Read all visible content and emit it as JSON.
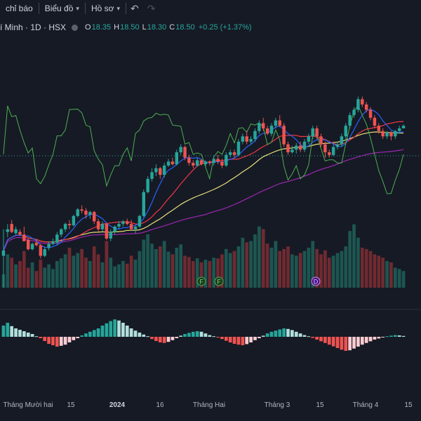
{
  "toolbar": {
    "indicators_label": "chỉ báo",
    "chart_label": "Biểu đồ",
    "profile_label": "Hồ sơ",
    "undo_icon": "undo-icon",
    "redo_icon": "redo-icon"
  },
  "legend": {
    "symbol_text": "í Minh · 1D · HSX",
    "open_key": "O",
    "open": "18.35",
    "high_key": "H",
    "high": "18.50",
    "low_key": "L",
    "low": "18.30",
    "close_key": "C",
    "close": "18.50",
    "change": "+0.25 (+1.37%)"
  },
  "colors": {
    "background": "#161a25",
    "up": "#26a69a",
    "down": "#ef5350",
    "ma_fast": "#2962ff",
    "ma_mid": "#f23645",
    "ma_slow": "#e8e07a",
    "ma_long": "#9c27b0",
    "rsi_like": "#4caf50"
  },
  "chart_data": {
    "type": "candlestick",
    "timeframe": "1D",
    "exchange": "HSX",
    "x_ticks": [
      "Tháng Mười hai",
      "15",
      "2024",
      "16",
      "Tháng Hai",
      "Tháng 3",
      "15",
      "Tháng 4",
      "15"
    ],
    "last_bar": {
      "open": 18.35,
      "high": 18.5,
      "low": 18.3,
      "close": 18.5,
      "change": 0.25,
      "change_pct": 1.37
    },
    "events": [
      {
        "label": "F",
        "after_tick": "Tháng Hai"
      },
      {
        "label": "F",
        "after_tick": "Tháng Hai"
      },
      {
        "label": "D",
        "after_tick": "Tháng 3"
      }
    ],
    "candles": [
      [
        0.52,
        0.56,
        0.72,
        0.28
      ],
      [
        0.7,
        0.72,
        0.76,
        0.66
      ],
      [
        0.76,
        0.7,
        0.79,
        0.69
      ],
      [
        0.69,
        0.72,
        0.74,
        0.68
      ],
      [
        0.7,
        0.68,
        0.72,
        0.67
      ],
      [
        0.68,
        0.63,
        0.74,
        0.63
      ],
      [
        0.64,
        0.57,
        0.65,
        0.56
      ],
      [
        0.57,
        0.61,
        0.62,
        0.56
      ],
      [
        0.62,
        0.6,
        0.64,
        0.59
      ],
      [
        0.6,
        0.52,
        0.61,
        0.5
      ],
      [
        0.52,
        0.57,
        0.59,
        0.51
      ],
      [
        0.58,
        0.61,
        0.63,
        0.56
      ],
      [
        0.61,
        0.63,
        0.65,
        0.6
      ],
      [
        0.62,
        0.68,
        0.7,
        0.6
      ],
      [
        0.68,
        0.72,
        0.73,
        0.66
      ],
      [
        0.72,
        0.76,
        0.77,
        0.7
      ],
      [
        0.76,
        0.75,
        0.79,
        0.72
      ],
      [
        0.75,
        0.82,
        0.83,
        0.74
      ],
      [
        0.82,
        0.87,
        0.88,
        0.81
      ],
      [
        0.87,
        0.86,
        0.9,
        0.84
      ],
      [
        0.86,
        0.83,
        0.88,
        0.8
      ],
      [
        0.83,
        0.85,
        0.86,
        0.8
      ],
      [
        0.85,
        0.78,
        0.86,
        0.76
      ],
      [
        0.78,
        0.72,
        0.8,
        0.7
      ],
      [
        0.72,
        0.76,
        0.78,
        0.7
      ],
      [
        0.76,
        0.65,
        0.77,
        0.64
      ],
      [
        0.65,
        0.7,
        0.72,
        0.63
      ],
      [
        0.7,
        0.74,
        0.75,
        0.68
      ],
      [
        0.74,
        0.76,
        0.78,
        0.72
      ],
      [
        0.76,
        0.78,
        0.79,
        0.74
      ],
      [
        0.78,
        0.76,
        0.8,
        0.75
      ],
      [
        0.76,
        0.72,
        0.79,
        0.71
      ],
      [
        0.72,
        0.74,
        0.75,
        0.69
      ],
      [
        0.74,
        0.82,
        0.83,
        0.73
      ],
      [
        0.82,
        1.0,
        1.02,
        0.81
      ],
      [
        1.0,
        1.1,
        1.12,
        0.99
      ],
      [
        1.1,
        1.15,
        1.18,
        1.08
      ],
      [
        1.15,
        1.18,
        1.21,
        1.12
      ],
      [
        1.18,
        1.13,
        1.19,
        1.1
      ],
      [
        1.13,
        1.2,
        1.22,
        1.11
      ],
      [
        1.2,
        1.23,
        1.25,
        1.19
      ],
      [
        1.23,
        1.21,
        1.26,
        1.2
      ],
      [
        1.21,
        1.3,
        1.32,
        1.2
      ],
      [
        1.3,
        1.34,
        1.36,
        1.28
      ],
      [
        1.34,
        1.26,
        1.35,
        1.24
      ],
      [
        1.26,
        1.22,
        1.28,
        1.2
      ],
      [
        1.22,
        1.2,
        1.24,
        1.18
      ],
      [
        1.2,
        1.24,
        1.26,
        1.19
      ],
      [
        1.24,
        1.21,
        1.25,
        1.2
      ],
      [
        1.21,
        1.23,
        1.24,
        1.19
      ],
      [
        1.23,
        1.22,
        1.24,
        1.2
      ],
      [
        1.22,
        1.25,
        1.27,
        1.2
      ],
      [
        1.25,
        1.23,
        1.28,
        1.21
      ],
      [
        1.23,
        1.2,
        1.25,
        1.18
      ],
      [
        1.2,
        1.28,
        1.3,
        1.19
      ],
      [
        1.28,
        1.3,
        1.32,
        1.26
      ],
      [
        1.3,
        1.28,
        1.32,
        1.26
      ],
      [
        1.28,
        1.38,
        1.4,
        1.27
      ],
      [
        1.38,
        1.42,
        1.44,
        1.36
      ],
      [
        1.42,
        1.38,
        1.46,
        1.36
      ],
      [
        1.38,
        1.4,
        1.42,
        1.36
      ],
      [
        1.4,
        1.46,
        1.48,
        1.38
      ],
      [
        1.46,
        1.52,
        1.54,
        1.44
      ],
      [
        1.52,
        1.48,
        1.56,
        1.46
      ],
      [
        1.48,
        1.44,
        1.5,
        1.43
      ],
      [
        1.44,
        1.5,
        1.52,
        1.42
      ],
      [
        1.5,
        1.54,
        1.56,
        1.48
      ],
      [
        1.54,
        1.5,
        1.58,
        1.49
      ],
      [
        1.5,
        1.36,
        1.52,
        1.34
      ],
      [
        1.36,
        1.3,
        1.38,
        1.28
      ],
      [
        1.3,
        1.32,
        1.35,
        1.29
      ],
      [
        1.32,
        1.35,
        1.37,
        1.29
      ],
      [
        1.35,
        1.32,
        1.38,
        1.3
      ],
      [
        1.32,
        1.38,
        1.4,
        1.3
      ],
      [
        1.38,
        1.42,
        1.44,
        1.36
      ],
      [
        1.42,
        1.48,
        1.5,
        1.4
      ],
      [
        1.48,
        1.42,
        1.5,
        1.4
      ],
      [
        1.42,
        1.36,
        1.44,
        1.34
      ],
      [
        1.36,
        1.3,
        1.38,
        1.26
      ],
      [
        1.3,
        1.28,
        1.32,
        1.26
      ],
      [
        1.28,
        1.34,
        1.36,
        1.27
      ],
      [
        1.34,
        1.36,
        1.38,
        1.32
      ],
      [
        1.36,
        1.42,
        1.44,
        1.34
      ],
      [
        1.42,
        1.5,
        1.52,
        1.4
      ],
      [
        1.5,
        1.58,
        1.6,
        1.48
      ],
      [
        1.58,
        1.62,
        1.64,
        1.56
      ],
      [
        1.62,
        1.7,
        1.72,
        1.6
      ],
      [
        1.7,
        1.66,
        1.72,
        1.64
      ],
      [
        1.66,
        1.62,
        1.68,
        1.6
      ],
      [
        1.62,
        1.56,
        1.64,
        1.54
      ],
      [
        1.56,
        1.5,
        1.58,
        1.48
      ],
      [
        1.5,
        1.46,
        1.52,
        1.44
      ],
      [
        1.46,
        1.42,
        1.48,
        1.4
      ],
      [
        1.42,
        1.45,
        1.46,
        1.4
      ],
      [
        1.45,
        1.42,
        1.46,
        1.39
      ],
      [
        1.42,
        1.46,
        1.47,
        1.4
      ],
      [
        1.46,
        1.48,
        1.5,
        1.44
      ],
      [
        1.48,
        1.5,
        1.51,
        1.48
      ]
    ],
    "volume": [
      0.2,
      0.5,
      0.45,
      0.35,
      0.4,
      0.55,
      0.3,
      0.38,
      0.25,
      0.42,
      0.3,
      0.35,
      0.28,
      0.4,
      0.44,
      0.5,
      0.6,
      0.48,
      0.52,
      0.58,
      0.45,
      0.4,
      0.62,
      0.5,
      0.38,
      0.7,
      0.45,
      0.32,
      0.35,
      0.4,
      0.36,
      0.48,
      0.42,
      0.55,
      0.72,
      0.8,
      0.66,
      0.58,
      0.62,
      0.7,
      0.54,
      0.5,
      0.6,
      0.65,
      0.48,
      0.46,
      0.4,
      0.44,
      0.38,
      0.42,
      0.4,
      0.45,
      0.44,
      0.5,
      0.58,
      0.52,
      0.55,
      0.62,
      0.75,
      0.68,
      0.7,
      0.8,
      0.92,
      0.88,
      0.66,
      0.6,
      0.7,
      0.55,
      0.58,
      0.62,
      0.5,
      0.48,
      0.52,
      0.55,
      0.6,
      0.7,
      0.58,
      0.5,
      0.56,
      0.45,
      0.48,
      0.52,
      0.55,
      0.62,
      0.85,
      0.95,
      0.75,
      0.6,
      0.58,
      0.55,
      0.5,
      0.48,
      0.45,
      0.4,
      0.38,
      0.3,
      0.28,
      0.25
    ],
    "histogram": [
      0.4,
      0.5,
      0.38,
      0.3,
      0.25,
      0.2,
      0.15,
      0.1,
      0.02,
      -0.05,
      -0.15,
      -0.25,
      -0.3,
      -0.35,
      -0.32,
      -0.28,
      -0.2,
      -0.12,
      -0.05,
      0.05,
      0.12,
      0.18,
      0.24,
      0.3,
      0.4,
      0.48,
      0.56,
      0.62,
      0.58,
      0.5,
      0.4,
      0.3,
      0.22,
      0.15,
      0.08,
      0.02,
      -0.08,
      -0.15,
      -0.2,
      -0.22,
      -0.18,
      -0.12,
      -0.05,
      0.04,
      0.1,
      0.14,
      0.18,
      0.2,
      0.18,
      0.12,
      0.06,
      0.02,
      -0.02,
      -0.08,
      -0.14,
      -0.2,
      -0.25,
      -0.28,
      -0.3,
      -0.26,
      -0.2,
      -0.12,
      -0.05,
      0.04,
      0.12,
      0.18,
      0.22,
      0.26,
      0.3,
      0.28,
      0.24,
      0.18,
      0.12,
      0.06,
      0.02,
      -0.04,
      -0.1,
      -0.16,
      -0.22,
      -0.28,
      -0.34,
      -0.4,
      -0.46,
      -0.5,
      -0.48,
      -0.42,
      -0.35,
      -0.28,
      -0.22,
      -0.16,
      -0.1,
      -0.06,
      -0.02,
      0.02,
      0.04,
      0.06,
      0.05,
      0.03
    ]
  }
}
